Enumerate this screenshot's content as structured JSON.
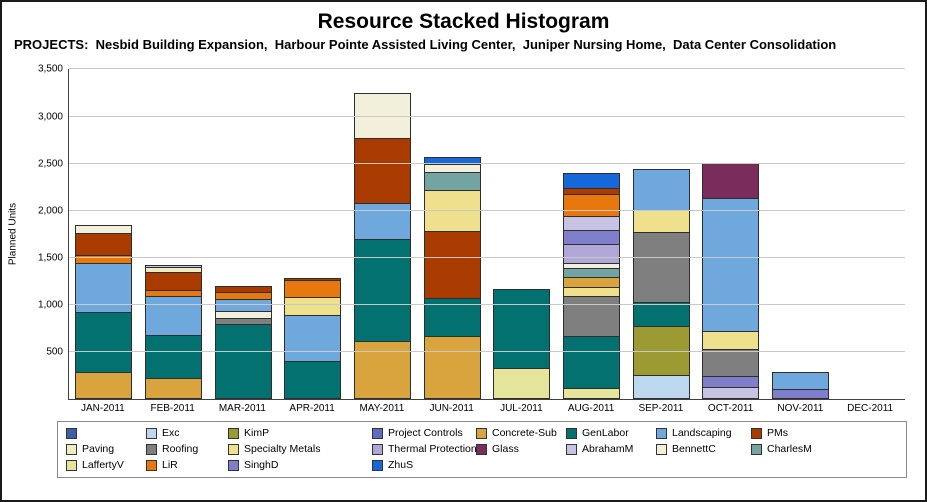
{
  "header": {
    "title": "Resource Stacked Histogram",
    "projects_label": "PROJECTS:",
    "projects_list": "  Nesbid Building Expansion,  Harbour Pointe Assisted Living Center,  Juniper Nursing Home,  Data Center Consolidation"
  },
  "chart_data": {
    "type": "bar",
    "stacked": true,
    "title": "Resource Stacked Histogram",
    "xlabel": "",
    "ylabel": "Planned Units",
    "ylim": [
      0,
      3500
    ],
    "grid": "horizontal",
    "legend_position": "bottom",
    "yticks": [
      500,
      1000,
      1500,
      2000,
      2500,
      3000,
      3500
    ],
    "ytick_labels": [
      "500",
      "1,000",
      "1,500",
      "2,000",
      "2,500",
      "3,000",
      "3,500"
    ],
    "categories": [
      "JAN-2011",
      "FEB-2011",
      "MAR-2011",
      "APR-2011",
      "MAY-2011",
      "JUN-2011",
      "JUL-2011",
      "AUG-2011",
      "SEP-2011",
      "OCT-2011",
      "NOV-2011",
      "DEC-2011"
    ],
    "legend": {
      "items": [
        {
          "label": "",
          "color": "#3B5FA8"
        },
        {
          "label": "Exc",
          "color": "#BDD7EE"
        },
        {
          "label": "KimP",
          "color": "#9C9A33"
        },
        {
          "label": "Project Controls",
          "color": "#5D6CC0"
        },
        {
          "label": "Concrete-Sub",
          "color": "#D9A33D"
        },
        {
          "label": "GenLabor",
          "color": "#03716F"
        },
        {
          "label": "Landscaping",
          "color": "#6FA8DC"
        },
        {
          "label": "PMs",
          "color": "#AA3B00"
        },
        {
          "label": "Paving",
          "color": "#ECEBC3"
        },
        {
          "label": "Roofing",
          "color": "#7F7F7F"
        },
        {
          "label": "Specialty Metals",
          "color": "#EFE08E"
        },
        {
          "label": "Thermal Protection",
          "color": "#B1A6D8"
        },
        {
          "label": "Glass",
          "color": "#7A2D5D"
        },
        {
          "label": "AbrahamM",
          "color": "#C6C4E2"
        },
        {
          "label": "BennettC",
          "color": "#F2F0DA"
        },
        {
          "label": "CharlesM",
          "color": "#74A3A3"
        },
        {
          "label": "LaffertyV",
          "color": "#E4E49B"
        },
        {
          "label": "LiR",
          "color": "#E8770D"
        },
        {
          "label": "SinghD",
          "color": "#7E7ECB"
        },
        {
          "label": "ZhuS",
          "color": "#1667D9"
        }
      ]
    },
    "bars": [
      {
        "month": "JAN-2011",
        "total": 1850,
        "segments": [
          {
            "resource": "Concrete-Sub",
            "value": 290
          },
          {
            "resource": "GenLabor",
            "value": 640
          },
          {
            "resource": "Landscaping",
            "value": 520
          },
          {
            "resource": "LiR",
            "value": 80
          },
          {
            "resource": "PMs",
            "value": 240
          },
          {
            "resource": "BennettC",
            "value": 80
          }
        ]
      },
      {
        "month": "FEB-2011",
        "total": 1430,
        "segments": [
          {
            "resource": "Concrete-Sub",
            "value": 230
          },
          {
            "resource": "GenLabor",
            "value": 450
          },
          {
            "resource": "Landscaping",
            "value": 420
          },
          {
            "resource": "LiR",
            "value": 60
          },
          {
            "resource": "PMs",
            "value": 190
          },
          {
            "resource": "Paving",
            "value": 50
          },
          {
            "resource": "AbrahamM",
            "value": 30
          }
        ]
      },
      {
        "month": "MAR-2011",
        "total": 1200,
        "segments": [
          {
            "resource": "GenLabor",
            "value": 800
          },
          {
            "resource": "Roofing",
            "value": 60
          },
          {
            "resource": "BennettC",
            "value": 80
          },
          {
            "resource": "Landscaping",
            "value": 130
          },
          {
            "resource": "LiR",
            "value": 70
          },
          {
            "resource": "PMs",
            "value": 60
          }
        ]
      },
      {
        "month": "APR-2011",
        "total": 1290,
        "segments": [
          {
            "resource": "GenLabor",
            "value": 410
          },
          {
            "resource": "Landscaping",
            "value": 490
          },
          {
            "resource": "Specialty Metals",
            "value": 190
          },
          {
            "resource": "LiR",
            "value": 180
          },
          {
            "resource": "PMs",
            "value": 20
          }
        ]
      },
      {
        "month": "MAY-2011",
        "total": 3250,
        "segments": [
          {
            "resource": "Concrete-Sub",
            "value": 620
          },
          {
            "resource": "GenLabor",
            "value": 1080
          },
          {
            "resource": "Landscaping",
            "value": 380
          },
          {
            "resource": "PMs",
            "value": 690
          },
          {
            "resource": "BennettC",
            "value": 480
          }
        ]
      },
      {
        "month": "JUN-2011",
        "total": 2570,
        "segments": [
          {
            "resource": "Concrete-Sub",
            "value": 670
          },
          {
            "resource": "GenLabor",
            "value": 410
          },
          {
            "resource": "PMs",
            "value": 710
          },
          {
            "resource": "Specialty Metals",
            "value": 430
          },
          {
            "resource": "CharlesM",
            "value": 190
          },
          {
            "resource": "BennettC",
            "value": 90
          },
          {
            "resource": "ZhuS",
            "value": 70
          }
        ]
      },
      {
        "month": "JUL-2011",
        "total": 1170,
        "segments": [
          {
            "resource": "LaffertyV",
            "value": 330
          },
          {
            "resource": "GenLabor",
            "value": 840
          }
        ]
      },
      {
        "month": "AUG-2011",
        "total": 2400,
        "segments": [
          {
            "resource": "LaffertyV",
            "value": 120
          },
          {
            "resource": "GenLabor",
            "value": 550
          },
          {
            "resource": "Roofing",
            "value": 430
          },
          {
            "resource": "Specialty Metals",
            "value": 90
          },
          {
            "resource": "Concrete-Sub",
            "value": 110
          },
          {
            "resource": "CharlesM",
            "value": 90
          },
          {
            "resource": "BennettC",
            "value": 60
          },
          {
            "resource": "Thermal Protection",
            "value": 200
          },
          {
            "resource": "SinghD",
            "value": 150
          },
          {
            "resource": "AbrahamM",
            "value": 150
          },
          {
            "resource": "LiR",
            "value": 230
          },
          {
            "resource": "PMs",
            "value": 60
          },
          {
            "resource": "ZhuS",
            "value": 160
          }
        ]
      },
      {
        "month": "SEP-2011",
        "total": 2440,
        "segments": [
          {
            "resource": "Exc",
            "value": 260
          },
          {
            "resource": "KimP",
            "value": 520
          },
          {
            "resource": "GenLabor",
            "value": 250
          },
          {
            "resource": "Roofing",
            "value": 750
          },
          {
            "resource": "Specialty Metals",
            "value": 230
          },
          {
            "resource": "Landscaping",
            "value": 430
          }
        ]
      },
      {
        "month": "OCT-2011",
        "total": 2510,
        "segments": [
          {
            "resource": "AbrahamM",
            "value": 130
          },
          {
            "resource": "SinghD",
            "value": 120
          },
          {
            "resource": "Roofing",
            "value": 280
          },
          {
            "resource": "Specialty Metals",
            "value": 200
          },
          {
            "resource": "Landscaping",
            "value": 1410
          },
          {
            "resource": "Glass",
            "value": 370
          }
        ]
      },
      {
        "month": "NOV-2011",
        "total": 290,
        "segments": [
          {
            "resource": "SinghD",
            "value": 110
          },
          {
            "resource": "Landscaping",
            "value": 180
          }
        ]
      },
      {
        "month": "DEC-2011",
        "total": 0,
        "segments": []
      }
    ]
  }
}
